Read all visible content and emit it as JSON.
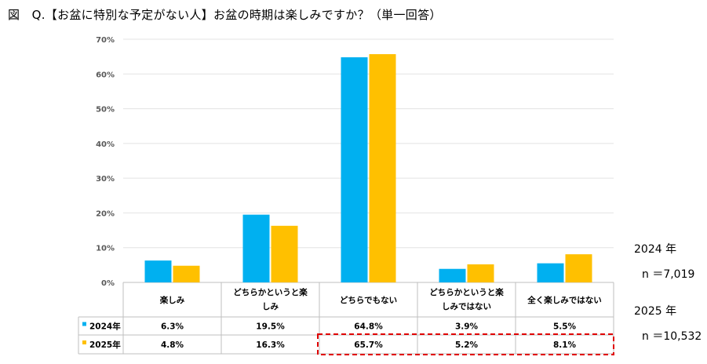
{
  "title": "図　Q.【お盆に特別な予定がない人】お盆の時期は楽しみですか？（単一回答）",
  "chart_data": {
    "type": "bar",
    "ylim": [
      0,
      70
    ],
    "yticks": [
      "0%",
      "10%",
      "20%",
      "30%",
      "40%",
      "50%",
      "60%",
      "70%"
    ],
    "grid": true,
    "categories": [
      [
        "楽しみ"
      ],
      [
        "どちらかというと楽",
        "しみ"
      ],
      [
        "どちらでもない"
      ],
      [
        "どちらかというと楽",
        "しみではない"
      ],
      [
        "全く楽しみではない"
      ]
    ],
    "series": [
      {
        "name": "2024年",
        "color": "#00B0F0",
        "values": [
          6.3,
          19.5,
          64.8,
          3.9,
          5.5
        ],
        "labels": [
          "6.3%",
          "19.5%",
          "64.8%",
          "3.9%",
          "5.5%"
        ]
      },
      {
        "name": "2025年",
        "color": "#FFC000",
        "values": [
          4.8,
          16.3,
          65.7,
          5.2,
          8.1
        ],
        "labels": [
          "4.8%",
          "16.3%",
          "65.7%",
          "5.2%",
          "8.1%"
        ]
      }
    ],
    "highlight_color": "#E00000"
  },
  "notes": {
    "year2024": "2024 年",
    "n2024": "n ＝7,019",
    "year2025": "2025 年",
    "n2025": "n ＝10,532"
  }
}
